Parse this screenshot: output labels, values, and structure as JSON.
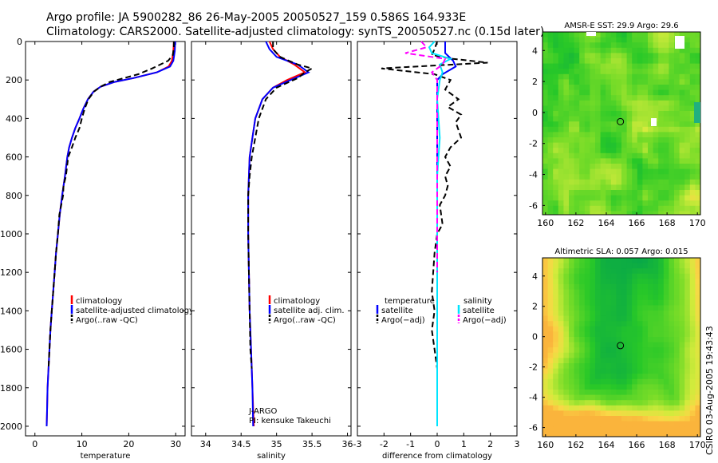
{
  "header": {
    "line1": "Argo profile: JA 5900282_86 26-May-2005 20050527_159 0.586S 164.933E",
    "line2": "Climatology: CARS2000. Satellite-adjusted climatology: synTS_20050527.nc (0.15d later)"
  },
  "colors": {
    "climatology": "#ff0000",
    "satellite": "#0000ff",
    "argo": "#000000",
    "salinity_satellite": "#00e5ff",
    "salinity_argo": "#ff00ff"
  },
  "chart_data": [
    {
      "type": "line",
      "id": "temperature",
      "xlabel": "temperature",
      "xlim": [
        -2,
        32
      ],
      "ylim": [
        0,
        2050
      ],
      "y_inverted": true,
      "xticks": [
        0,
        10,
        20,
        30
      ],
      "xticklabels": [
        "0",
        "10",
        "20",
        "30"
      ],
      "yticks": [
        0,
        200,
        400,
        600,
        800,
        1000,
        1200,
        1400,
        1600,
        1800,
        2000
      ],
      "yticklabels": [
        "0",
        "200",
        "400",
        "600",
        "800",
        "1000",
        "1200",
        "1400",
        "1600",
        "1800",
        "2000"
      ],
      "legend": [
        "climatology",
        "satellite-adjusted climatology",
        "Argo(..raw -QC)"
      ],
      "series": [
        {
          "name": "climatology",
          "color": "#ff0000",
          "dash": "",
          "points": [
            [
              29.6,
              0
            ],
            [
              29.5,
              50
            ],
            [
              29.2,
              100
            ],
            [
              28.5,
              130
            ],
            [
              26,
              160
            ],
            [
              21,
              190
            ],
            [
              17,
              210
            ],
            [
              14,
              235
            ],
            [
              12.5,
              260
            ],
            [
              11.3,
              300
            ],
            [
              10.3,
              350
            ],
            [
              9.5,
              400
            ],
            [
              8.6,
              450
            ],
            [
              7.9,
              500
            ],
            [
              7.3,
              550
            ],
            [
              6.9,
              600
            ],
            [
              6.4,
              700
            ],
            [
              5.8,
              800
            ],
            [
              5.3,
              900
            ],
            [
              4.9,
              1000
            ],
            [
              4.5,
              1100
            ],
            [
              4.2,
              1200
            ],
            [
              3.9,
              1300
            ],
            [
              3.6,
              1400
            ],
            [
              3.3,
              1500
            ],
            [
              3.1,
              1600
            ],
            [
              2.9,
              1700
            ],
            [
              2.7,
              1800
            ],
            [
              2.6,
              1900
            ],
            [
              2.5,
              2000
            ]
          ]
        },
        {
          "name": "satellite-adjusted climatology",
          "color": "#0000ff",
          "dash": "",
          "points": [
            [
              29.9,
              0
            ],
            [
              29.8,
              50
            ],
            [
              29.5,
              100
            ],
            [
              28.8,
              130
            ],
            [
              26,
              160
            ],
            [
              21,
              190
            ],
            [
              17,
              210
            ],
            [
              14,
              235
            ],
            [
              12.5,
              260
            ],
            [
              11.3,
              300
            ],
            [
              10.3,
              350
            ],
            [
              9.5,
              400
            ],
            [
              8.6,
              450
            ],
            [
              7.9,
              500
            ],
            [
              7.3,
              550
            ],
            [
              6.9,
              600
            ],
            [
              6.4,
              700
            ],
            [
              5.8,
              800
            ],
            [
              5.3,
              900
            ],
            [
              4.9,
              1000
            ],
            [
              4.5,
              1100
            ],
            [
              4.2,
              1200
            ],
            [
              3.9,
              1300
            ],
            [
              3.6,
              1400
            ],
            [
              3.3,
              1500
            ],
            [
              3.1,
              1600
            ],
            [
              2.9,
              1700
            ],
            [
              2.7,
              1800
            ],
            [
              2.6,
              1900
            ],
            [
              2.5,
              2000
            ]
          ]
        },
        {
          "name": "Argo(..raw -QC)",
          "color": "#000000",
          "dash": "7,4",
          "points": [
            [
              29.6,
              0
            ],
            [
              29.6,
              30
            ],
            [
              29.4,
              70
            ],
            [
              28.4,
              100
            ],
            [
              25,
              140
            ],
            [
              22,
              170
            ],
            [
              19,
              190
            ],
            [
              16,
              210
            ],
            [
              14,
              235
            ],
            [
              12.6,
              260
            ],
            [
              11.4,
              300
            ],
            [
              10.6,
              350
            ],
            [
              10,
              400
            ],
            [
              9.5,
              450
            ],
            [
              8.6,
              500
            ],
            [
              7.9,
              550
            ],
            [
              7.1,
              600
            ],
            [
              6.6,
              700
            ],
            [
              6.1,
              750
            ],
            [
              6,
              800
            ],
            [
              5.2,
              900
            ],
            [
              4.9,
              1000
            ],
            [
              4.5,
              1100
            ],
            [
              4.2,
              1200
            ],
            [
              3.9,
              1300
            ],
            [
              3.6,
              1400
            ],
            [
              3.3,
              1500
            ],
            [
              3.1,
              1600
            ],
            [
              2.9,
              1700
            ]
          ]
        }
      ]
    },
    {
      "type": "line",
      "id": "salinity",
      "xlabel": "salinity",
      "xlim": [
        33.8,
        36.05
      ],
      "ylim": [
        0,
        2050
      ],
      "y_inverted": true,
      "xticks": [
        34,
        34.5,
        35,
        35.5,
        36
      ],
      "xticklabels": [
        "34",
        "34.5",
        "35",
        "35.5",
        "36"
      ],
      "legend": [
        "climatology",
        "satellite adj. clim.",
        "Argo(..raw -QC)"
      ],
      "notes": [
        "J-ARGO",
        "PI: kensuke Takeuchi"
      ],
      "series": [
        {
          "name": "climatology",
          "color": "#ff0000",
          "dash": "",
          "points": [
            [
              34.9,
              0
            ],
            [
              34.95,
              40
            ],
            [
              35.05,
              80
            ],
            [
              35.25,
              120
            ],
            [
              35.4,
              160
            ],
            [
              35.15,
              200
            ],
            [
              34.95,
              240
            ],
            [
              34.8,
              300
            ],
            [
              34.7,
              400
            ],
            [
              34.66,
              500
            ],
            [
              34.62,
              600
            ],
            [
              34.6,
              800
            ],
            [
              34.6,
              1000
            ],
            [
              34.61,
              1200
            ],
            [
              34.62,
              1400
            ],
            [
              34.64,
              1600
            ],
            [
              34.66,
              1800
            ],
            [
              34.68,
              2000
            ]
          ]
        },
        {
          "name": "satellite adj. clim.",
          "color": "#0000ff",
          "dash": "",
          "points": [
            [
              34.85,
              0
            ],
            [
              34.9,
              40
            ],
            [
              35.0,
              80
            ],
            [
              35.3,
              120
            ],
            [
              35.45,
              160
            ],
            [
              35.2,
              200
            ],
            [
              34.95,
              240
            ],
            [
              34.8,
              300
            ],
            [
              34.7,
              400
            ],
            [
              34.66,
              500
            ],
            [
              34.62,
              600
            ],
            [
              34.6,
              800
            ],
            [
              34.6,
              1000
            ],
            [
              34.61,
              1200
            ],
            [
              34.62,
              1400
            ],
            [
              34.64,
              1600
            ],
            [
              34.66,
              1800
            ],
            [
              34.67,
              2000
            ]
          ]
        },
        {
          "name": "Argo(..raw -QC)",
          "color": "#000000",
          "dash": "7,4",
          "points": [
            [
              34.95,
              0
            ],
            [
              34.95,
              40
            ],
            [
              35.05,
              80
            ],
            [
              35.3,
              120
            ],
            [
              35.5,
              140
            ],
            [
              35.4,
              160
            ],
            [
              35.3,
              190
            ],
            [
              35.0,
              240
            ],
            [
              34.85,
              300
            ],
            [
              34.75,
              400
            ],
            [
              34.7,
              500
            ],
            [
              34.65,
              600
            ],
            [
              34.62,
              700
            ],
            [
              34.6,
              800
            ],
            [
              34.6,
              1000
            ],
            [
              34.61,
              1200
            ],
            [
              34.62,
              1400
            ],
            [
              34.63,
              1600
            ],
            [
              34.65,
              1700
            ]
          ]
        }
      ]
    },
    {
      "type": "line",
      "id": "difference",
      "xlabel": "difference from climatology",
      "xlim": [
        -3,
        3
      ],
      "ylim": [
        0,
        2050
      ],
      "y_inverted": true,
      "xticks": [
        -3,
        -2,
        -1,
        0,
        1,
        2,
        3
      ],
      "xticklabels": [
        "-3",
        "-2",
        "-1",
        "0",
        "1",
        "2",
        "3"
      ],
      "legend_temperature_title": "temperature",
      "legend_temperature": [
        "satellite",
        "Argo(−adj)"
      ],
      "legend_salinity_title": "salinity",
      "legend_salinity": [
        "satellite",
        "Argo(−adj)"
      ],
      "series": [
        {
          "name": "temperature satellite",
          "color": "#0000ff",
          "dash": "",
          "points": [
            [
              0.3,
              0
            ],
            [
              0.3,
              30
            ],
            [
              0.3,
              60
            ],
            [
              0.6,
              100
            ],
            [
              0.7,
              130
            ],
            [
              0.2,
              170
            ],
            [
              0,
              200
            ],
            [
              0,
              400
            ],
            [
              0,
              1000
            ],
            [
              0,
              1500
            ],
            [
              0,
              2000
            ]
          ]
        },
        {
          "name": "temperature Argo(−adj)",
          "color": "#000000",
          "dash": "7,4",
          "points": [
            [
              0,
              0
            ],
            [
              -0.1,
              40
            ],
            [
              -0.2,
              70
            ],
            [
              0.6,
              90
            ],
            [
              1.9,
              110
            ],
            [
              -2.1,
              140
            ],
            [
              -0.1,
              170
            ],
            [
              0.5,
              200
            ],
            [
              0.3,
              250
            ],
            [
              0.8,
              300
            ],
            [
              0.4,
              340
            ],
            [
              0.9,
              380
            ],
            [
              0.7,
              420
            ],
            [
              0.8,
              460
            ],
            [
              0.9,
              500
            ],
            [
              0.5,
              550
            ],
            [
              0.3,
              600
            ],
            [
              0.5,
              650
            ],
            [
              0.3,
              700
            ],
            [
              0.4,
              750
            ],
            [
              0.3,
              800
            ],
            [
              0.1,
              850
            ],
            [
              0.2,
              950
            ],
            [
              0,
              1000
            ],
            [
              -0.1,
              1100
            ],
            [
              -0.2,
              1300
            ],
            [
              -0.1,
              1400
            ],
            [
              -0.2,
              1500
            ],
            [
              -0.1,
              1600
            ],
            [
              0,
              1700
            ]
          ]
        },
        {
          "name": "salinity satellite",
          "color": "#00e5ff",
          "dash": "",
          "points": [
            [
              -0.1,
              0
            ],
            [
              -0.3,
              30
            ],
            [
              -0.2,
              60
            ],
            [
              0.5,
              90
            ],
            [
              0.1,
              120
            ],
            [
              0.2,
              160
            ],
            [
              0.1,
              200
            ],
            [
              0,
              300
            ],
            [
              0.1,
              500
            ],
            [
              0,
              700
            ],
            [
              0,
              1000
            ],
            [
              0,
              1500
            ],
            [
              0,
              2000
            ]
          ]
        },
        {
          "name": "salinity Argo(−adj)",
          "color": "#ff00ff",
          "dash": "7,4",
          "points": [
            [
              -0.6,
              0
            ],
            [
              -0.4,
              30
            ],
            [
              -1.2,
              60
            ],
            [
              0.3,
              90
            ],
            [
              0.2,
              120
            ],
            [
              -0.2,
              160
            ],
            [
              0,
              200
            ],
            [
              0,
              260
            ],
            [
              0,
              400
            ],
            [
              0,
              600
            ],
            [
              0,
              800
            ],
            [
              0,
              1000
            ],
            [
              0,
              1200
            ]
          ]
        }
      ]
    },
    {
      "type": "heatmap",
      "id": "sst-map",
      "title": "AMSR-E SST: 29.9 Argo: 29.6",
      "xlim": [
        159.8,
        170.2
      ],
      "ylim": [
        -6.6,
        5.2
      ],
      "xticks": [
        160,
        162,
        164,
        166,
        168,
        170
      ],
      "xticklabels": [
        "160",
        "162",
        "164",
        "166",
        "168",
        "170"
      ],
      "yticks": [
        4,
        2,
        0,
        -2,
        -4,
        -6
      ],
      "yticklabels": [
        "4",
        "2",
        "0",
        "-2",
        "-4",
        "-6"
      ],
      "marker": [
        164.93,
        -0.59
      ]
    },
    {
      "type": "heatmap",
      "id": "sla-map",
      "title": "Altimetric SLA: 0.057 Argo: 0.015",
      "xlim": [
        159.8,
        170.2
      ],
      "ylim": [
        -6.6,
        5.2
      ],
      "xticks": [
        160,
        162,
        164,
        166,
        168,
        170
      ],
      "xticklabels": [
        "160",
        "162",
        "164",
        "166",
        "168",
        "170"
      ],
      "yticks": [
        4,
        2,
        0,
        -2,
        -4,
        -6
      ],
      "yticklabels": [
        "4",
        "2",
        "0",
        "-2",
        "-4",
        "-6"
      ],
      "marker": [
        164.93,
        -0.59
      ]
    }
  ],
  "side_label": "CSIRO 03-Aug-2005 19:43:43"
}
